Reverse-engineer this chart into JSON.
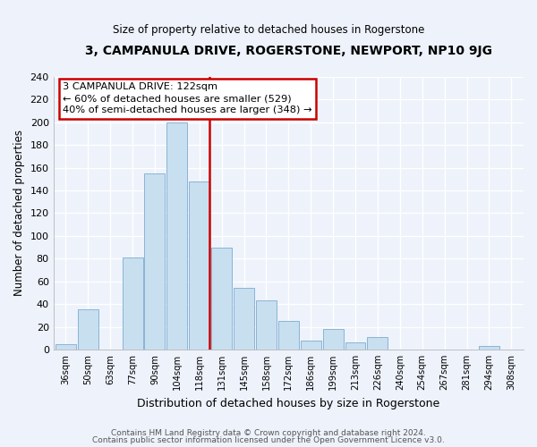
{
  "title": "3, CAMPANULA DRIVE, ROGERSTONE, NEWPORT, NP10 9JG",
  "subtitle": "Size of property relative to detached houses in Rogerstone",
  "xlabel": "Distribution of detached houses by size in Rogerstone",
  "ylabel": "Number of detached properties",
  "bin_labels": [
    "36sqm",
    "50sqm",
    "63sqm",
    "77sqm",
    "90sqm",
    "104sqm",
    "118sqm",
    "131sqm",
    "145sqm",
    "158sqm",
    "172sqm",
    "186sqm",
    "199sqm",
    "213sqm",
    "226sqm",
    "240sqm",
    "254sqm",
    "267sqm",
    "281sqm",
    "294sqm",
    "308sqm"
  ],
  "bar_heights": [
    5,
    35,
    0,
    81,
    155,
    200,
    148,
    90,
    54,
    43,
    25,
    8,
    18,
    6,
    11,
    0,
    0,
    0,
    0,
    3,
    0
  ],
  "bar_color": "#c8dff0",
  "bar_edge_color": "#8ab4d4",
  "vline_color": "#cc0000",
  "annotation_text": "3 CAMPANULA DRIVE: 122sqm\n← 60% of detached houses are smaller (529)\n40% of semi-detached houses are larger (348) →",
  "annotation_box_color": "#ffffff",
  "annotation_box_edge": "#cc0000",
  "ylim": [
    0,
    240
  ],
  "yticks": [
    0,
    20,
    40,
    60,
    80,
    100,
    120,
    140,
    160,
    180,
    200,
    220,
    240
  ],
  "footer_line1": "Contains HM Land Registry data © Crown copyright and database right 2024.",
  "footer_line2": "Contains public sector information licensed under the Open Government Licence v3.0.",
  "bg_color": "#edf2fb",
  "grid_color": "#ffffff"
}
